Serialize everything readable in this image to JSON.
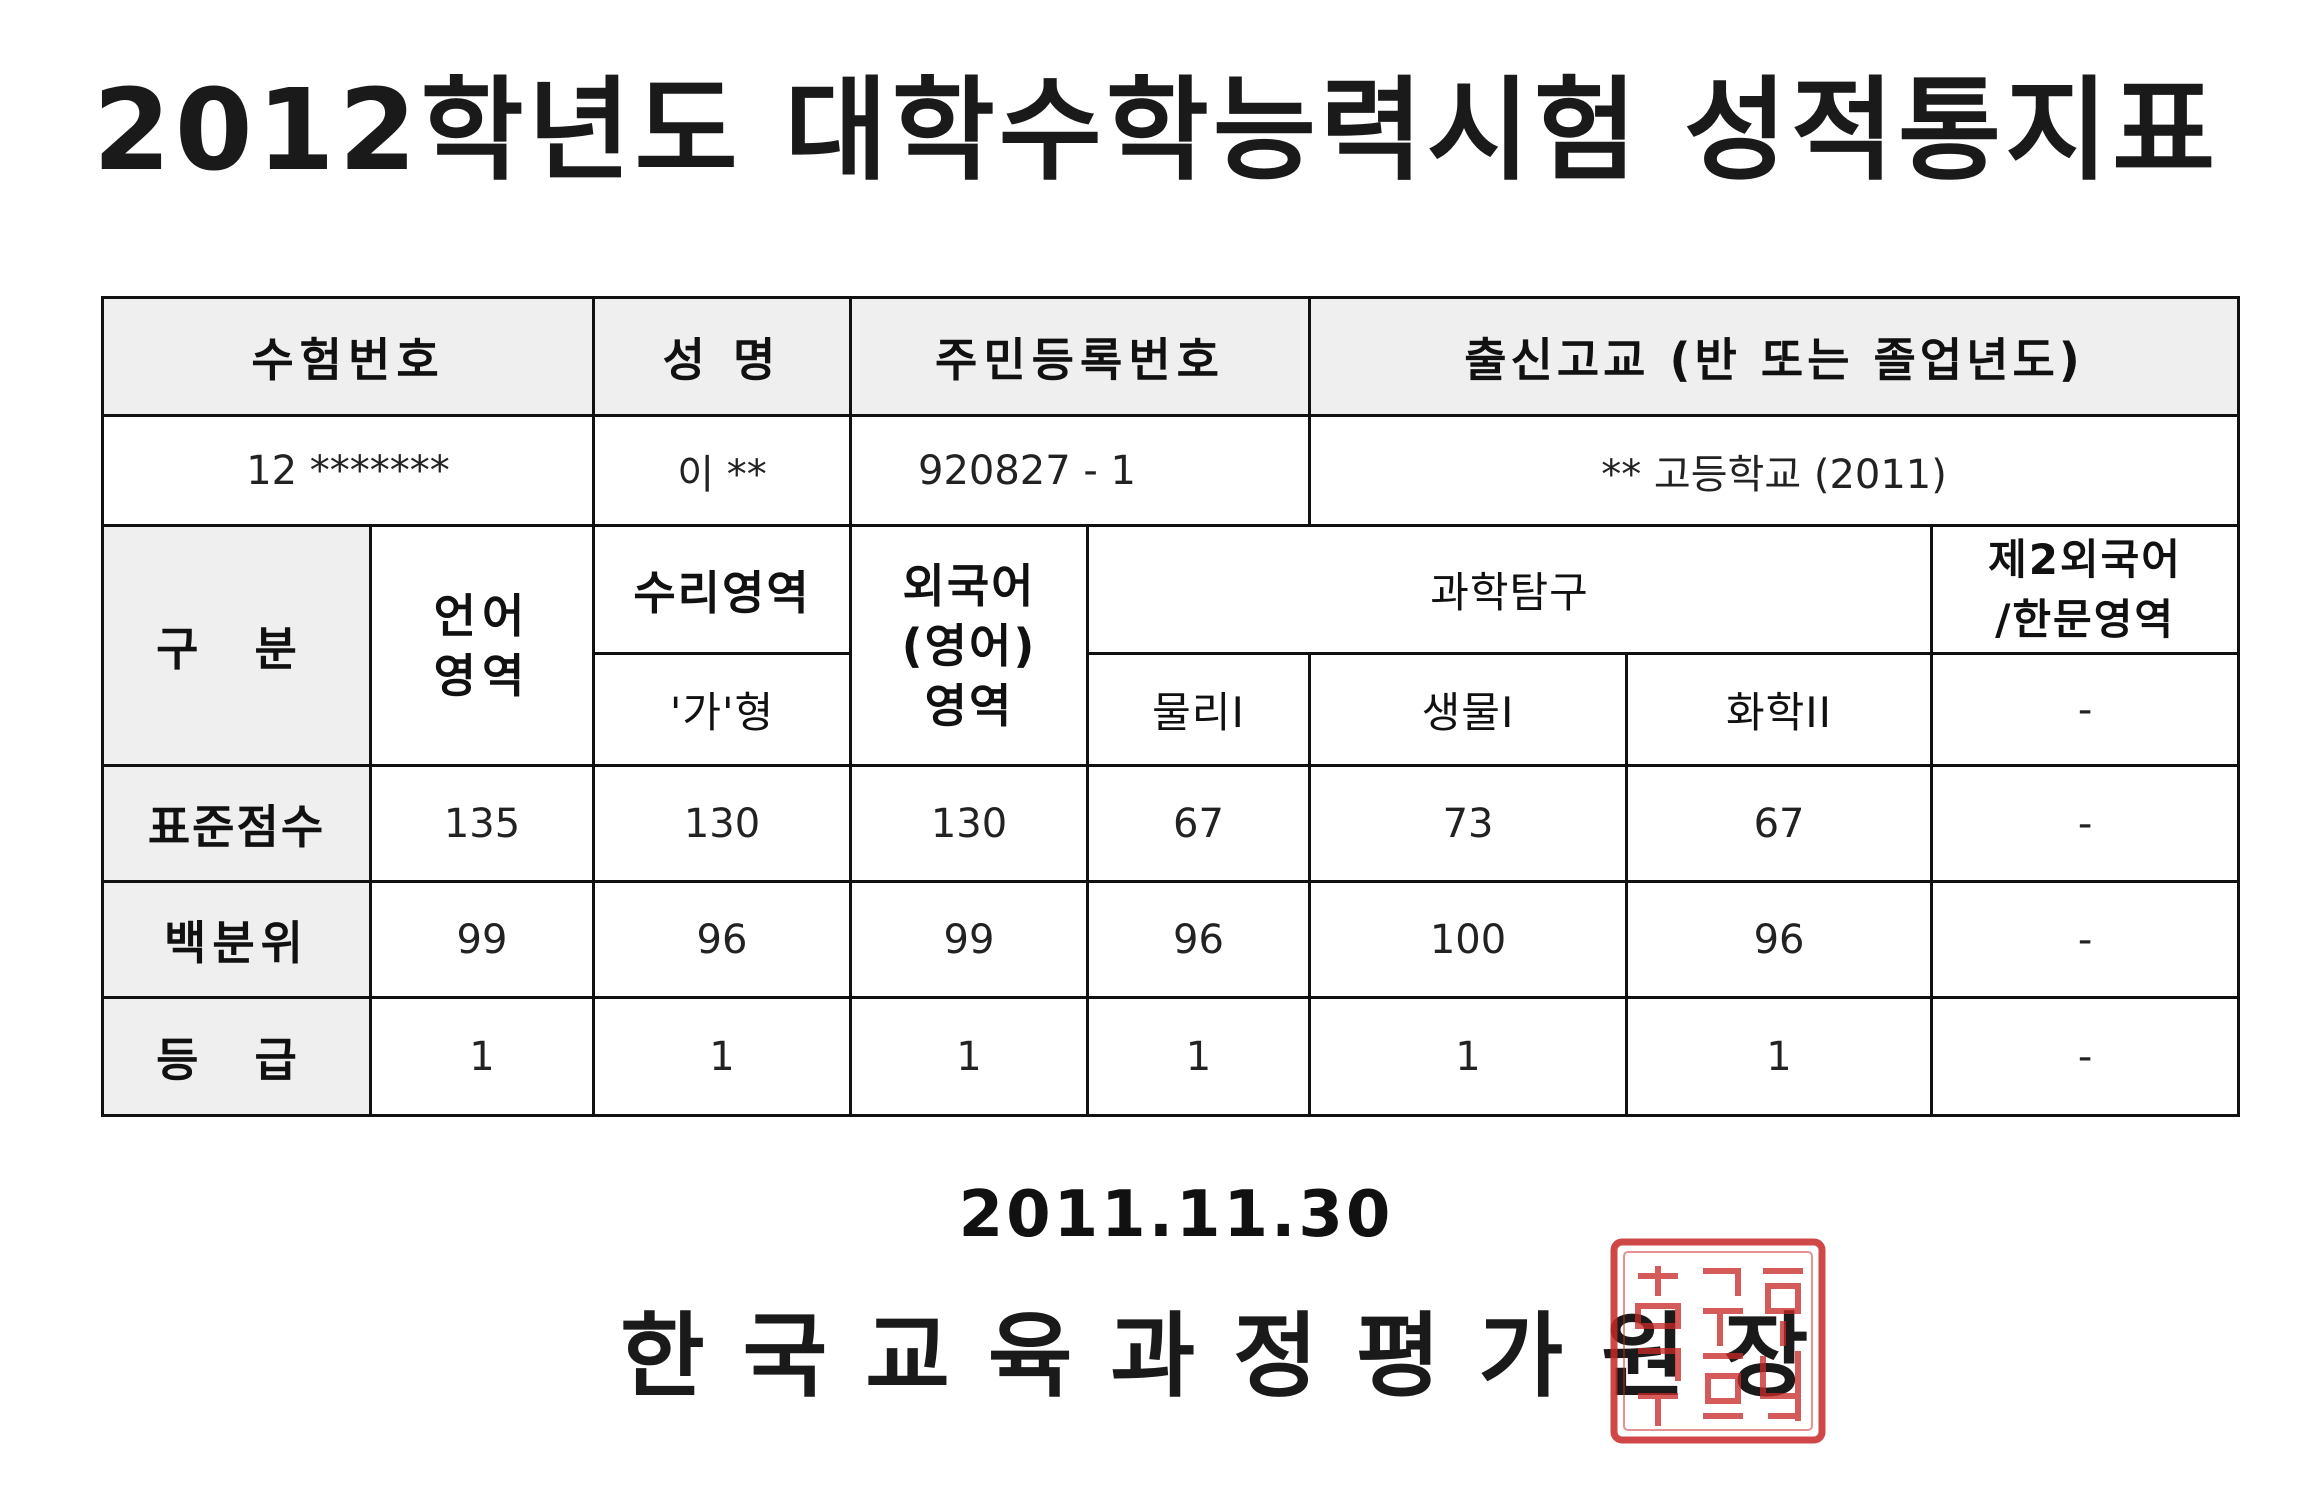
{
  "title": "2012학년도 대학수학능력시험 성적통지표",
  "header": {
    "exam_no_label": "수험번호",
    "name_label": "성 명",
    "id_label": "주민등록번호",
    "school_label": "출신고교 (반 또는 졸업년도)"
  },
  "identity": {
    "exam_no": "12 *******",
    "name": "이 **",
    "id_no": "920827 - 1",
    "school": "** 고등학교 (2011)"
  },
  "subjects": {
    "category_label": "구 분",
    "korean": "언어\n영역",
    "math": "수리영역",
    "math_type": "'가'형",
    "english": "외국어\n(영어)\n영역",
    "science": "과학탐구",
    "physics": "물리I",
    "biology": "생물I",
    "chemistry": "화학II",
    "second_lang": "제2외국어\n/한문영역",
    "second_lang_sub": "-"
  },
  "rows": [
    {
      "label": "표준점수",
      "values": [
        "135",
        "130",
        "130",
        "67",
        "73",
        "67",
        "-"
      ]
    },
    {
      "label": "백분위",
      "values": [
        "99",
        "96",
        "99",
        "96",
        "100",
        "96",
        "-"
      ]
    },
    {
      "label": "등 급",
      "values": [
        "1",
        "1",
        "1",
        "1",
        "1",
        "1",
        "-"
      ]
    }
  ],
  "date": "2011.11.30",
  "issuer": "한국교육과정평가원장",
  "seal_text": "한국교육과정평가원장인",
  "colors": {
    "header_bg": "#efefef",
    "seal": "#c82828",
    "border": "#111111"
  }
}
